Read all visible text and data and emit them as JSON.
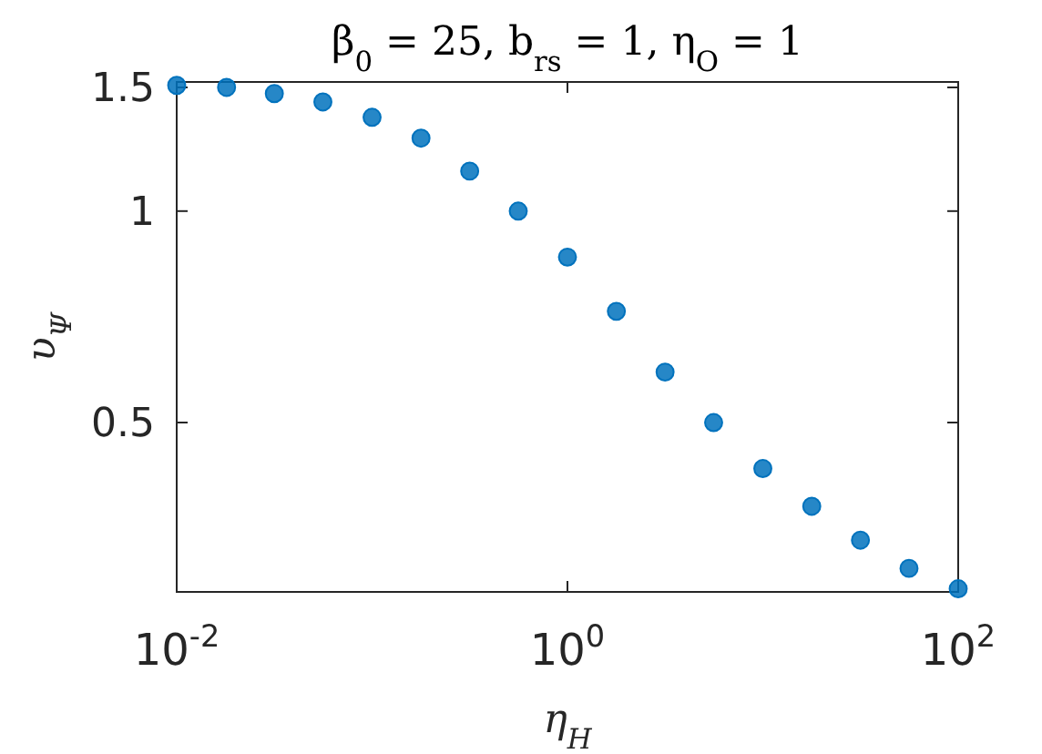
{
  "chart_data": {
    "type": "scatter",
    "title": "β$_{0}$ = 25, b$_{rs}$ = 1, η$_{O}$ = 1",
    "xlabel": "η$_{H}$",
    "ylabel": "υ$_{Ψ}$",
    "log": "xy",
    "marker": "circle",
    "grid": false,
    "x": [
      0.01,
      0.018,
      0.0316,
      0.056,
      0.1,
      0.178,
      0.316,
      0.56,
      1,
      1.78,
      3.16,
      5.6,
      10,
      17.8,
      31.6,
      56,
      100
    ],
    "series": [
      {
        "color": "#0072bd",
        "values": [
          1.51,
          1.5,
          1.47,
          1.43,
          1.36,
          1.27,
          1.14,
          1.0,
          0.86,
          0.72,
          0.59,
          0.5,
          0.43,
          0.38,
          0.34,
          0.31,
          0.29
        ]
      }
    ],
    "xlim": [
      0.01,
      100
    ],
    "ylim": [
      0.287,
      1.527
    ],
    "xticks": [
      {
        "value": 0.01,
        "label": "10$^{-2}$"
      },
      {
        "value": 1,
        "label": "10$^{0}$"
      },
      {
        "value": 100,
        "label": "10$^{2}$"
      }
    ],
    "yticks": [
      0.5,
      1,
      1.5
    ]
  }
}
